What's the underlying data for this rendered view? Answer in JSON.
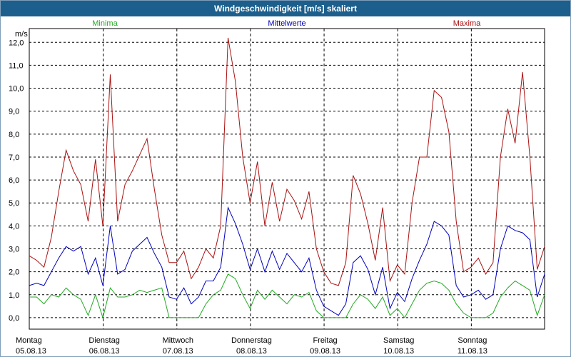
{
  "title": "Windgeschwindigkeit [m/s] skaliert",
  "legend": {
    "minima": "Minima",
    "mittelwerte": "Mittelwerte",
    "maxima": "Maxima"
  },
  "colors": {
    "minima": "#22aa22",
    "mittelwerte": "#0000bb",
    "maxima": "#aa1111",
    "title_bg": "#1c5f8c"
  },
  "chart_data": {
    "type": "line",
    "title": "Windgeschwindigkeit [m/s] skaliert",
    "ylabel": "m/s",
    "xlabel": "",
    "ylim": [
      -0.5,
      12.6
    ],
    "yticks": [
      "0,0",
      "1,0",
      "2,0",
      "3,0",
      "4,0",
      "5,0",
      "6,0",
      "7,0",
      "8,0",
      "9,0",
      "10,0",
      "11,0",
      "12,0"
    ],
    "xlim": [
      0,
      7
    ],
    "day_labels": [
      {
        "day": "Montag",
        "date": "05.08.13",
        "x": 0
      },
      {
        "day": "Dienstag",
        "date": "06.08.13",
        "x": 1
      },
      {
        "day": "Mittwoch",
        "date": "07.08.13",
        "x": 2
      },
      {
        "day": "Donnerstag",
        "date": "08.08.13",
        "x": 3
      },
      {
        "day": "Freitag",
        "date": "09.08.13",
        "x": 4
      },
      {
        "day": "Samstag",
        "date": "10.08.13",
        "x": 5
      },
      {
        "day": "Sonntag",
        "date": "11.08.13",
        "x": 6
      }
    ],
    "grid": true,
    "series": [
      {
        "name": "Maxima",
        "key": "maxima",
        "x": [
          0,
          0.1,
          0.2,
          0.3,
          0.4,
          0.5,
          0.6,
          0.7,
          0.8,
          0.9,
          1.0,
          1.1,
          1.2,
          1.3,
          1.4,
          1.5,
          1.6,
          1.7,
          1.8,
          1.9,
          2.0,
          2.1,
          2.2,
          2.3,
          2.4,
          2.5,
          2.6,
          2.7,
          2.8,
          2.9,
          3.0,
          3.1,
          3.2,
          3.3,
          3.4,
          3.5,
          3.6,
          3.7,
          3.8,
          3.9,
          4.0,
          4.1,
          4.2,
          4.3,
          4.4,
          4.5,
          4.6,
          4.7,
          4.8,
          4.9,
          5.0,
          5.1,
          5.2,
          5.3,
          5.4,
          5.5,
          5.6,
          5.7,
          5.8,
          5.9,
          6.0,
          6.1,
          6.2,
          6.3,
          6.4,
          6.5,
          6.6,
          6.7,
          6.8,
          6.9,
          7.0
        ],
        "values": [
          2.7,
          2.5,
          2.2,
          3.5,
          5.5,
          7.3,
          6.4,
          5.8,
          4.2,
          6.9,
          4.0,
          10.6,
          4.2,
          5.8,
          6.4,
          7.1,
          7.8,
          5.6,
          3.6,
          2.4,
          2.4,
          2.9,
          1.7,
          2.2,
          3.0,
          2.6,
          4.0,
          12.2,
          10.3,
          7.0,
          5.0,
          6.8,
          4.0,
          5.9,
          4.2,
          5.6,
          5.1,
          4.3,
          5.5,
          3.0,
          2.0,
          1.5,
          1.4,
          2.4,
          6.2,
          5.4,
          4.1,
          2.5,
          4.8,
          1.6,
          2.3,
          1.9,
          5.0,
          7.0,
          7.0,
          9.9,
          9.6,
          8.1,
          4.2,
          2.0,
          2.2,
          2.6,
          1.9,
          2.4,
          7.0,
          9.1,
          7.6,
          10.7,
          7.0,
          2.1,
          3.1
        ]
      },
      {
        "name": "Mittelwerte",
        "key": "mittelwerte",
        "x": [
          0,
          0.1,
          0.2,
          0.3,
          0.4,
          0.5,
          0.6,
          0.7,
          0.8,
          0.9,
          1.0,
          1.1,
          1.2,
          1.3,
          1.4,
          1.5,
          1.6,
          1.7,
          1.8,
          1.9,
          2.0,
          2.1,
          2.2,
          2.3,
          2.4,
          2.5,
          2.6,
          2.7,
          2.8,
          2.9,
          3.0,
          3.1,
          3.2,
          3.3,
          3.4,
          3.5,
          3.6,
          3.7,
          3.8,
          3.9,
          4.0,
          4.1,
          4.2,
          4.3,
          4.4,
          4.5,
          4.6,
          4.7,
          4.8,
          4.9,
          5.0,
          5.1,
          5.2,
          5.3,
          5.4,
          5.5,
          5.6,
          5.7,
          5.8,
          5.9,
          6.0,
          6.1,
          6.2,
          6.3,
          6.4,
          6.5,
          6.6,
          6.7,
          6.8,
          6.9,
          7.0
        ],
        "values": [
          1.4,
          1.5,
          1.4,
          2.0,
          2.6,
          3.1,
          2.9,
          3.1,
          1.9,
          2.6,
          1.4,
          4.0,
          1.9,
          2.1,
          2.9,
          3.2,
          3.5,
          2.8,
          2.2,
          0.9,
          0.8,
          1.3,
          0.6,
          0.9,
          1.6,
          1.6,
          2.2,
          4.8,
          4.1,
          3.2,
          2.1,
          3.0,
          2.0,
          2.9,
          2.1,
          2.8,
          2.4,
          2.0,
          2.6,
          1.2,
          0.5,
          0.3,
          0.1,
          0.6,
          2.4,
          2.7,
          2.1,
          1.0,
          2.2,
          0.4,
          1.1,
          0.7,
          1.7,
          2.5,
          3.2,
          4.2,
          4.0,
          3.6,
          1.4,
          0.9,
          1.0,
          1.2,
          0.8,
          1.0,
          3.0,
          4.0,
          3.8,
          3.7,
          3.4,
          0.9,
          1.9
        ]
      },
      {
        "name": "Minima",
        "key": "minima",
        "x": [
          0,
          0.1,
          0.2,
          0.3,
          0.4,
          0.5,
          0.6,
          0.7,
          0.8,
          0.9,
          1.0,
          1.1,
          1.2,
          1.3,
          1.4,
          1.5,
          1.6,
          1.7,
          1.8,
          1.9,
          2.0,
          2.1,
          2.2,
          2.3,
          2.4,
          2.5,
          2.6,
          2.7,
          2.8,
          2.9,
          3.0,
          3.1,
          3.2,
          3.3,
          3.4,
          3.5,
          3.6,
          3.7,
          3.8,
          3.9,
          4.0,
          4.1,
          4.2,
          4.3,
          4.4,
          4.5,
          4.6,
          4.7,
          4.8,
          4.9,
          5.0,
          5.1,
          5.2,
          5.3,
          5.4,
          5.5,
          5.6,
          5.7,
          5.8,
          5.9,
          6.0,
          6.1,
          6.2,
          6.3,
          6.4,
          6.5,
          6.6,
          6.7,
          6.8,
          6.9,
          7.0
        ],
        "values": [
          0.9,
          0.9,
          0.6,
          1.0,
          0.9,
          1.3,
          1.0,
          0.8,
          0.1,
          1.0,
          0.0,
          1.3,
          0.9,
          0.9,
          1.0,
          1.2,
          1.1,
          1.2,
          1.3,
          0.0,
          0.0,
          0.0,
          0.0,
          0.0,
          0.6,
          1.0,
          1.2,
          1.9,
          1.7,
          1.0,
          0.4,
          1.2,
          0.8,
          1.2,
          0.9,
          0.6,
          1.0,
          0.9,
          1.1,
          0.3,
          0.0,
          0.0,
          0.0,
          0.0,
          0.6,
          1.0,
          0.8,
          0.4,
          0.9,
          0.1,
          0.4,
          0.0,
          0.6,
          1.2,
          1.5,
          1.6,
          1.5,
          1.2,
          0.6,
          0.2,
          0.0,
          0.0,
          0.0,
          0.2,
          0.9,
          1.3,
          1.6,
          1.4,
          1.2,
          0.1,
          1.0
        ]
      }
    ]
  }
}
